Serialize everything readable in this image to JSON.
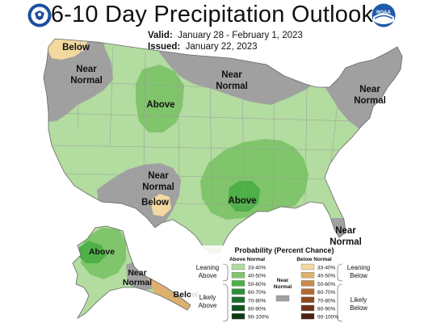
{
  "header": {
    "title": "6-10 Day Precipitation Outlook",
    "valid_label": "Valid:",
    "valid_dates": "January 28 - February 1, 2023",
    "issued_label": "Issued:",
    "issued_date": "January 22, 2023",
    "left_logo_icon": "doc-seal-icon",
    "right_logo_icon": "noaa-logo-icon",
    "right_logo_text": "NOAA"
  },
  "map_labels": {
    "nw_below": "Below",
    "nw_near_1": "Near",
    "nw_near_2": "Normal",
    "nc_near_1": "Near",
    "nc_near_2": "Normal",
    "rockies_above": "Above",
    "sw_near_1": "Near",
    "sw_near_2": "Normal",
    "sw_below": "Below",
    "south_above": "Above",
    "ne_near_1": "Near",
    "ne_near_2": "Normal",
    "fl_near_1": "Near",
    "fl_near_2": "Normal",
    "ak_above": "Above",
    "ak_near_1": "Near",
    "ak_near_2": "Normal",
    "ak_below": "Below"
  },
  "legend": {
    "title": "Probability (Percent Chance)",
    "above_header": "Above Normal",
    "below_header": "Below Normal",
    "near_header_1": "Near",
    "near_header_2": "Normal",
    "leaning_above_1": "Leaning",
    "leaning_above_2": "Above",
    "likely_above_1": "Likely",
    "likely_above_2": "Above",
    "leaning_below_1": "Leaning",
    "leaning_below_2": "Below",
    "likely_below_1": "Likely",
    "likely_below_2": "Below",
    "above_bins": [
      {
        "label": "33-40%",
        "color": "#b3dca0"
      },
      {
        "label": "40-50%",
        "color": "#80c56b"
      },
      {
        "label": "50-60%",
        "color": "#4eb047"
      },
      {
        "label": "60-70%",
        "color": "#2f8f3a"
      },
      {
        "label": "70-80%",
        "color": "#1e6e2c"
      },
      {
        "label": "80-90%",
        "color": "#125220"
      },
      {
        "label": "90-100%",
        "color": "#0b3a14"
      }
    ],
    "below_bins": [
      {
        "label": "33-40%",
        "color": "#f3d8a0"
      },
      {
        "label": "40-50%",
        "color": "#ddb070"
      },
      {
        "label": "50-60%",
        "color": "#c88a4a"
      },
      {
        "label": "60-70%",
        "color": "#b06a32"
      },
      {
        "label": "70-80%",
        "color": "#8e4a22"
      },
      {
        "label": "80-90%",
        "color": "#6e3418"
      },
      {
        "label": "90-100%",
        "color": "#4a200e"
      }
    ],
    "near_color": "#a0a0a0"
  },
  "colors": {
    "near_normal": "#a0a0a0",
    "above_33_40": "#b3dca0",
    "above_40_50": "#80c56b",
    "above_50_60": "#4eb047",
    "below_33_40": "#f3d8a0",
    "canada_white": "#ffffff",
    "border": "#7a7a7a"
  }
}
